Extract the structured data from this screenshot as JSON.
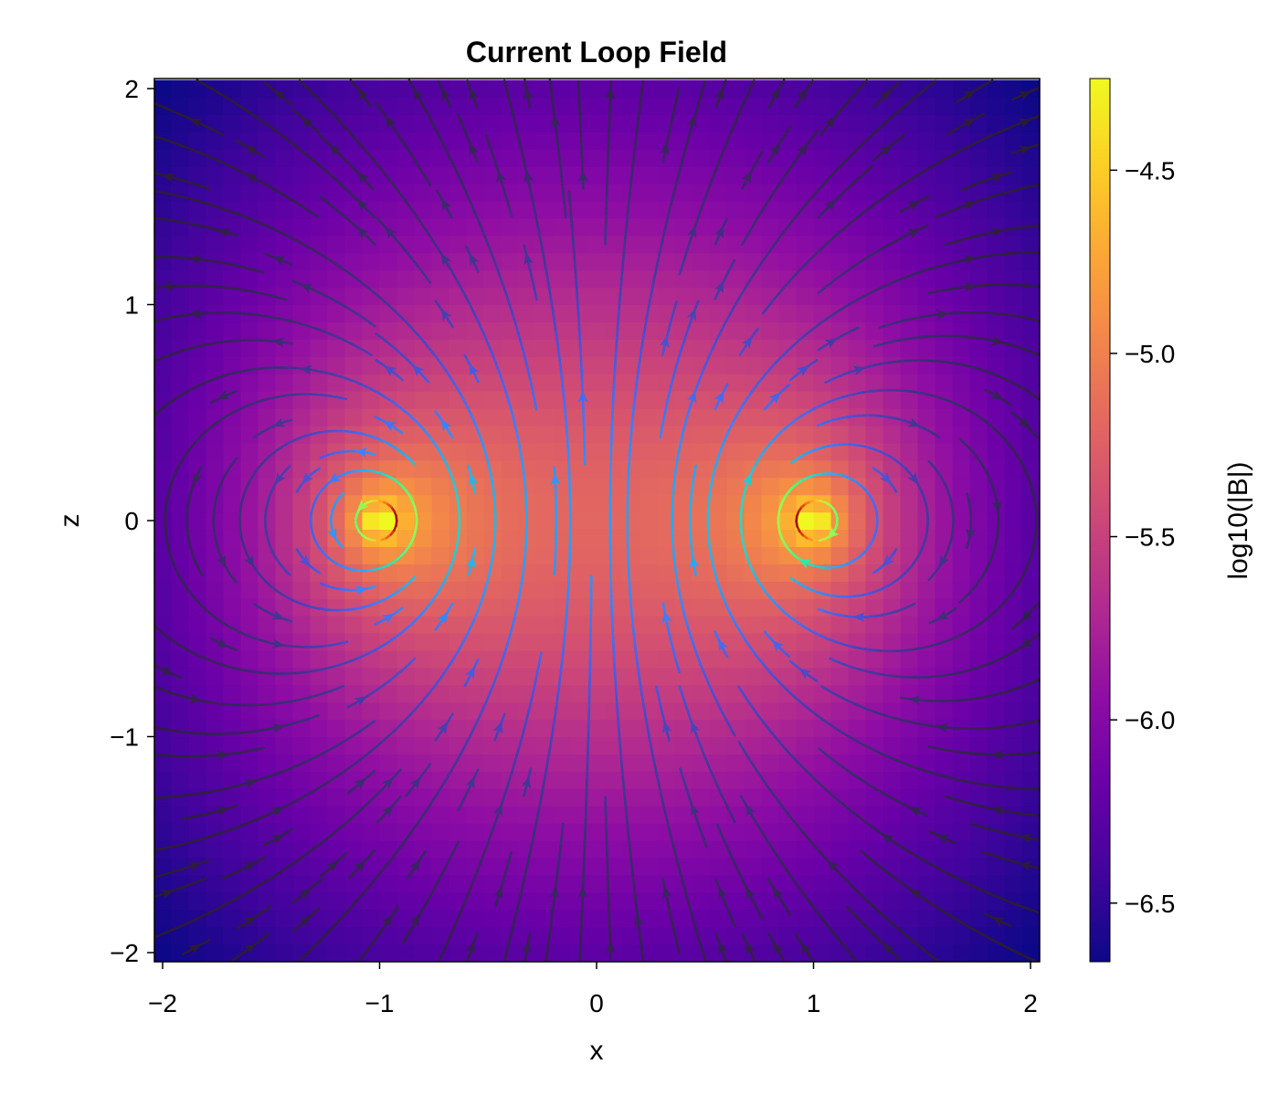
{
  "chart_data": {
    "type": "heatmap",
    "overlay": "streamlines",
    "title": "Current Loop Field",
    "xlabel": "x",
    "ylabel": "z",
    "colorbar_label": "log10(|B|)",
    "colormap": "plasma",
    "streamline_colormap": "turbo",
    "xlim": [
      -2.04,
      2.04
    ],
    "ylim": [
      -2.04,
      2.04
    ],
    "grid": {
      "min": -2,
      "max": 2,
      "step": 0.08
    },
    "field": {
      "source": "circular current loop in the x-y plane",
      "loop_radius": 1,
      "current": 10,
      "mu0": 1.2566370614e-06,
      "value": "log10(|B|)"
    },
    "color_range": [
      -6.66,
      -4.25
    ],
    "xticks": [
      -2,
      -1,
      0,
      1,
      2
    ],
    "xtick_labels": [
      "−2",
      "−1",
      "0",
      "1",
      "2"
    ],
    "yticks": [
      -2,
      -1,
      0,
      1,
      2
    ],
    "ytick_labels": [
      "−2",
      "−1",
      "0",
      "1",
      "2"
    ],
    "colorbar_ticks": [
      -4.5,
      -5.0,
      -5.5,
      -6.0,
      -6.5
    ],
    "colorbar_tick_labels": [
      "−4.5",
      "−5.0",
      "−5.5",
      "−6.0",
      "−6.5"
    ],
    "grid_lines": false
  }
}
